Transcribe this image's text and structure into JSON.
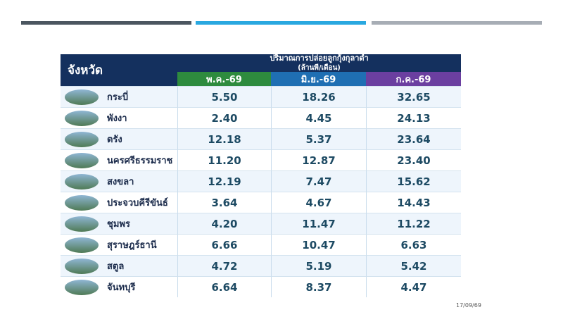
{
  "table": {
    "corner_header": "จังหวัด",
    "title": "ปริมาณการปล่อยลูกกุ้งกุลาดำ",
    "unit": "(ล้านพี/เดือน)",
    "columns": [
      "พ.ค.-69",
      "มิ.ย.-69",
      "ก.ค.-69"
    ],
    "rows": [
      [
        "กระบี่",
        "5.50",
        "18.26",
        "32.65"
      ],
      [
        "พังงา",
        "2.40",
        "4.45",
        "24.13"
      ],
      [
        "ตรัง",
        "12.18",
        "5.37",
        "23.64"
      ],
      [
        "นครศรีธรรมราช",
        "11.20",
        "12.87",
        "23.40"
      ],
      [
        "สงขลา",
        "12.19",
        "7.47",
        "15.62"
      ],
      [
        "ประจวบคีรีขันธ์",
        "3.64",
        "4.67",
        "14.43"
      ],
      [
        "ชุมพร",
        "4.20",
        "11.47",
        "11.22"
      ],
      [
        "สุราษฎร์ธานี",
        "6.66",
        "10.47",
        "6.63"
      ],
      [
        "สตูล",
        "4.72",
        "5.19",
        "5.42"
      ],
      [
        "จันทบุรี",
        "6.64",
        "8.37",
        "4.47"
      ]
    ]
  },
  "footer": {
    "date": "17/09/69"
  }
}
